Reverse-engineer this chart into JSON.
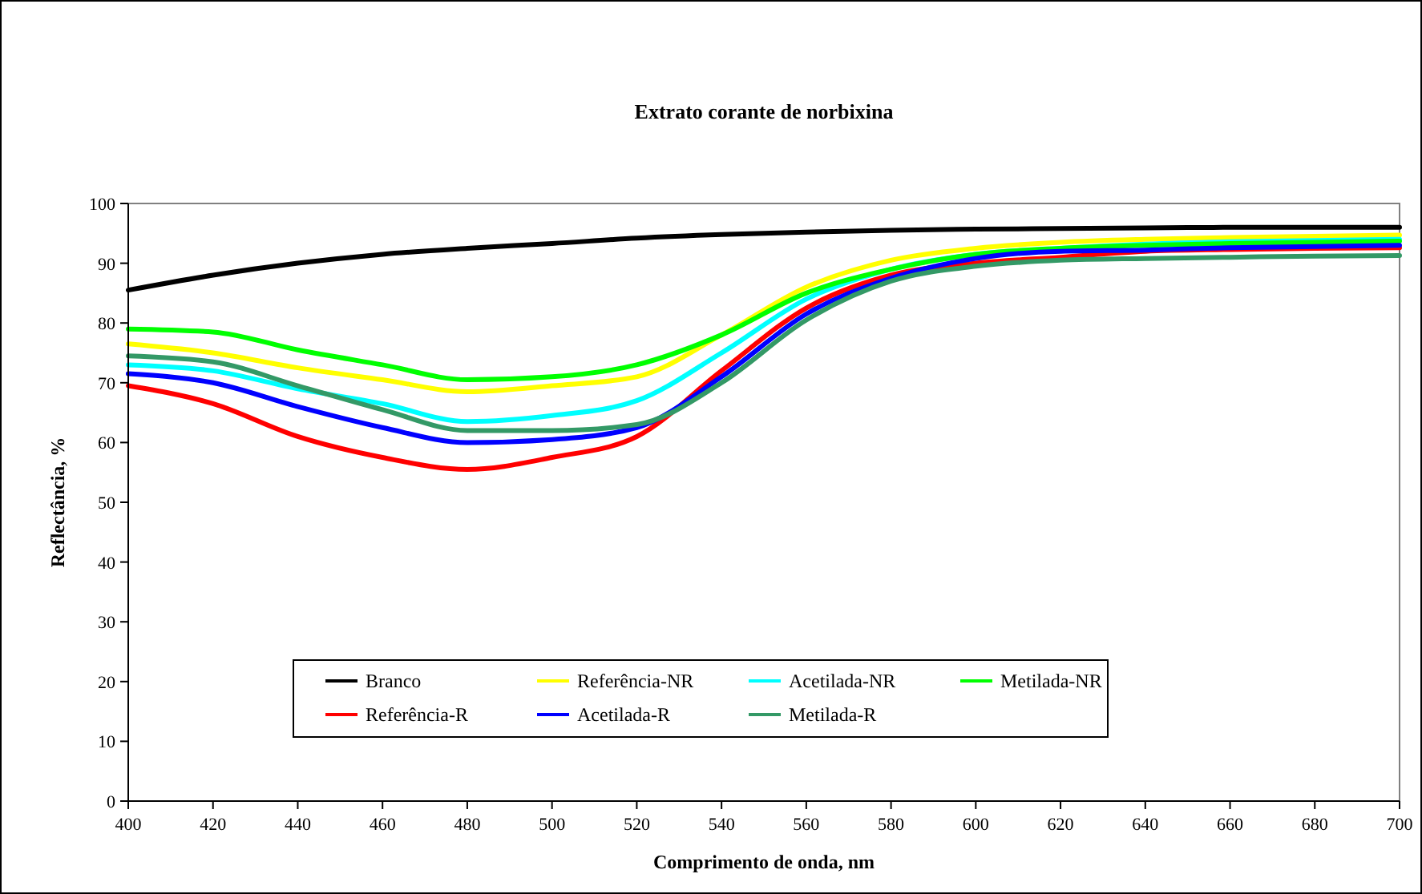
{
  "chart_data": {
    "type": "line",
    "title": "Extrato corante de norbixina",
    "xlabel": "Comprimento de onda, nm",
    "ylabel": "Reflectância, %",
    "x": [
      400,
      420,
      440,
      460,
      480,
      500,
      520,
      540,
      560,
      580,
      600,
      620,
      640,
      660,
      680,
      700
    ],
    "xlim": [
      400,
      700
    ],
    "xticks": [
      400,
      420,
      440,
      460,
      480,
      500,
      520,
      540,
      560,
      580,
      600,
      620,
      640,
      660,
      680,
      700
    ],
    "ylim": [
      0,
      100
    ],
    "yticks": [
      0,
      10,
      20,
      30,
      40,
      50,
      60,
      70,
      80,
      90,
      100
    ],
    "grid": false,
    "legend": "bottom",
    "marker": "none",
    "line_style": "solid",
    "series": [
      {
        "name": "Branco",
        "color": "#000000",
        "values": [
          85.5,
          88,
          90,
          91.5,
          92.5,
          93.3,
          94.2,
          94.8,
          95.2,
          95.5,
          95.7,
          95.8,
          95.9,
          96,
          96,
          96
        ]
      },
      {
        "name": "Referência-NR",
        "color": "#ffff00",
        "values": [
          76.5,
          75,
          72.5,
          70.5,
          68.5,
          69.5,
          71,
          78,
          86,
          90.5,
          92.5,
          93.5,
          94,
          94.3,
          94.5,
          94.7
        ]
      },
      {
        "name": "Acetilada-NR",
        "color": "#00ffff",
        "values": [
          73,
          72,
          69,
          66.5,
          63.5,
          64.5,
          67,
          75,
          84,
          89,
          91.5,
          92.5,
          93.2,
          93.6,
          93.8,
          94
        ]
      },
      {
        "name": "Metilada-NR",
        "color": "#00ff00",
        "values": [
          79,
          78.5,
          75.5,
          73,
          70.5,
          71,
          73,
          78,
          85,
          89,
          91.5,
          92.5,
          93,
          93.3,
          93.5,
          93.7
        ]
      },
      {
        "name": "Referência-R",
        "color": "#ff0000",
        "values": [
          69.5,
          66.5,
          61,
          57.5,
          55.5,
          57.5,
          61,
          72,
          82.5,
          88,
          90,
          91,
          92,
          92.3,
          92.5,
          92.6
        ]
      },
      {
        "name": "Acetilada-R",
        "color": "#0000ff",
        "values": [
          71.5,
          70,
          66,
          62.5,
          60,
          60.5,
          62.5,
          71,
          81.5,
          87.5,
          90.8,
          92,
          92.2,
          92.6,
          92.8,
          93
        ]
      },
      {
        "name": "Metilada-R",
        "color": "#339966",
        "values": [
          74.5,
          73.5,
          69.5,
          65.5,
          62,
          62,
          63,
          70,
          80.5,
          87,
          89.5,
          90.5,
          90.8,
          91,
          91.2,
          91.3
        ]
      }
    ]
  }
}
